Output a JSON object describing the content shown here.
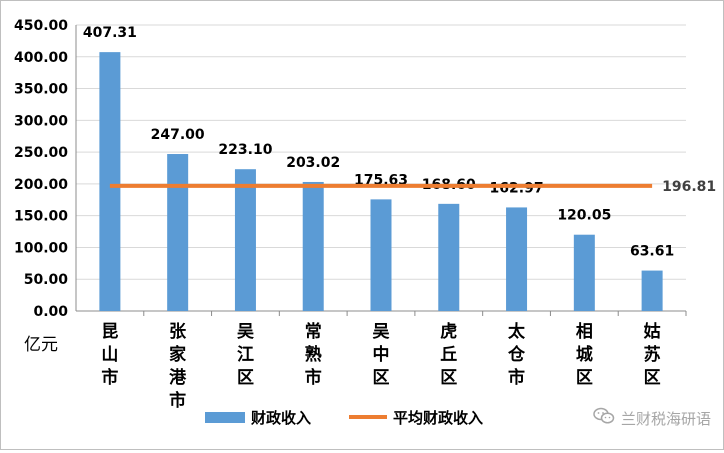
{
  "chart_data": {
    "type": "bar",
    "categories": [
      "昆山市",
      "张家港市",
      "吴江区",
      "常熟市",
      "吴中区",
      "虎丘区",
      "太仓市",
      "相城区",
      "姑苏区"
    ],
    "series": [
      {
        "name": "财政收入",
        "type": "bar",
        "values": [
          407.31,
          247.0,
          223.1,
          203.02,
          175.63,
          168.6,
          162.97,
          120.05,
          63.61
        ],
        "color": "#5b9bd5"
      },
      {
        "name": "平均财政收入",
        "type": "line",
        "values": [
          196.81,
          196.81,
          196.81,
          196.81,
          196.81,
          196.81,
          196.81,
          196.81,
          196.81
        ],
        "color": "#ed7d31"
      }
    ],
    "data_labels": [
      "407.31",
      "247.00",
      "223.10",
      "203.02",
      "175.63",
      "168.60",
      "162.97",
      "120.05",
      "63.61"
    ],
    "average_label": "196.81",
    "ylim": [
      0,
      450
    ],
    "yticks": [
      "0.00",
      "50.00",
      "100.00",
      "150.00",
      "200.00",
      "250.00",
      "300.00",
      "350.00",
      "400.00",
      "450.00"
    ],
    "ylabel": "亿元",
    "grid": true,
    "legend_position": "bottom"
  },
  "legend": {
    "bar_label": "财政收入",
    "line_label": "平均财政收入"
  },
  "watermark": {
    "text": "兰财税海研语",
    "icon": "wechat-icon"
  }
}
